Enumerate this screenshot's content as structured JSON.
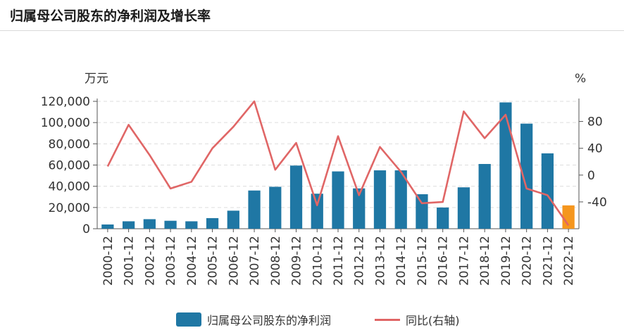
{
  "page": {
    "title": "归属母公司股东的净利润及增长率"
  },
  "chart_data": {
    "type": "bar",
    "categories": [
      "2000-12",
      "2001-12",
      "2002-12",
      "2003-12",
      "2004-12",
      "2005-12",
      "2006-12",
      "2007-12",
      "2008-12",
      "2009-12",
      "2010-12",
      "2011-12",
      "2012-12",
      "2013-12",
      "2014-12",
      "2015-12",
      "2016-12",
      "2017-12",
      "2018-12",
      "2019-12",
      "2020-12",
      "2021-12",
      "2022-12"
    ],
    "left_axis": {
      "unit": "万元",
      "ylim": [
        0,
        120000
      ],
      "ticks": [
        "0",
        "20,000",
        "40,000",
        "60,000",
        "80,000",
        "100,000",
        "120,000"
      ],
      "tick_values": [
        0,
        20000,
        40000,
        60000,
        80000,
        100000,
        120000
      ]
    },
    "right_axis": {
      "unit": "%",
      "ylim": [
        -80,
        110
      ],
      "ticks": [
        "-40",
        "0",
        "40",
        "80"
      ],
      "tick_values": [
        -40,
        0,
        40,
        80
      ]
    },
    "grid": true,
    "legend_position": "bottom",
    "series": [
      {
        "name": "归属母公司股东的净利润",
        "type": "bar",
        "axis": "left",
        "color": "#1f77a4",
        "highlight_last_color": "#f5961e",
        "values": [
          4000,
          7000,
          9000,
          7500,
          7000,
          10000,
          17000,
          36000,
          39500,
          59500,
          33000,
          54000,
          38000,
          55000,
          55000,
          32500,
          20000,
          39000,
          61000,
          119000,
          99000,
          71000,
          22000
        ]
      },
      {
        "name": "同比(右轴)",
        "type": "line",
        "axis": "right",
        "color": "#e06666",
        "values": [
          13,
          75,
          30,
          -20,
          -10,
          40,
          72,
          110,
          8,
          48,
          -45,
          58,
          -30,
          42,
          5,
          -42,
          -40,
          95,
          55,
          90,
          -20,
          -30,
          -75
        ]
      }
    ]
  }
}
